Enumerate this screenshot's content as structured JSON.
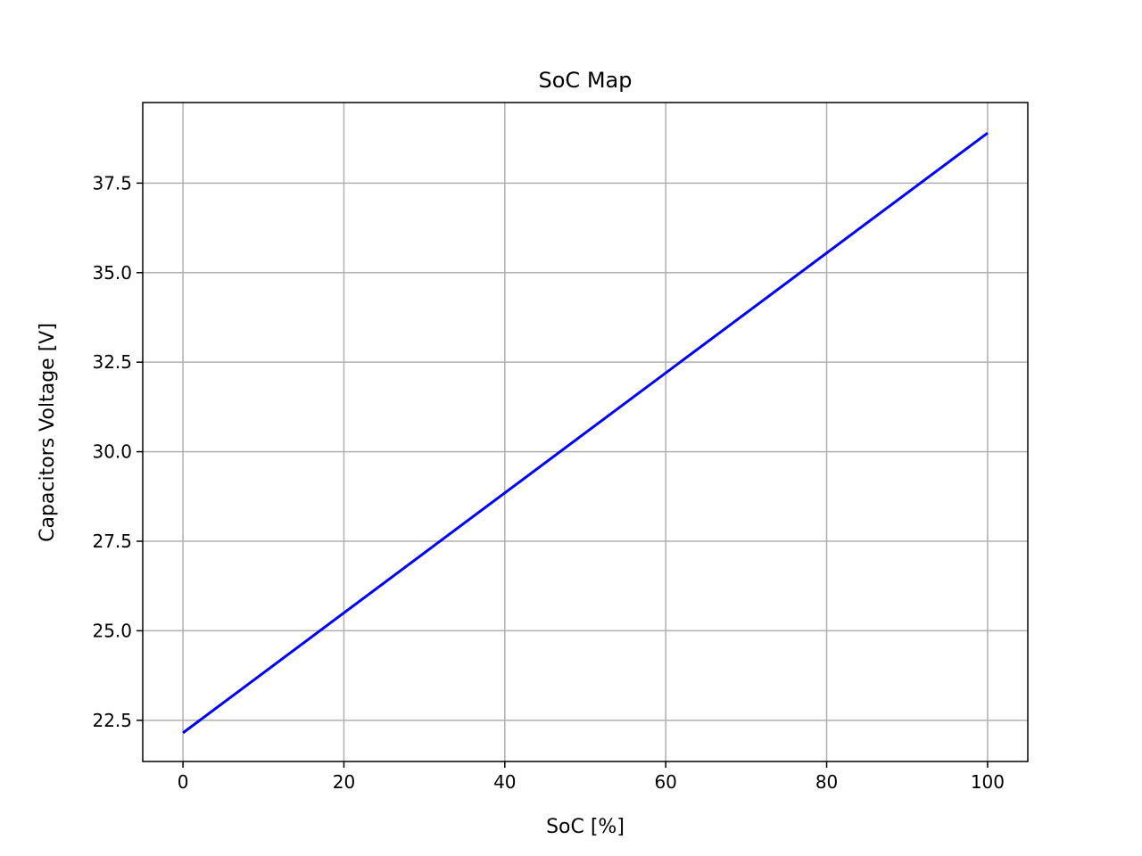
{
  "chart_data": {
    "type": "line",
    "title": "SoC Map",
    "xlabel": "SoC [%]",
    "ylabel": "Capacitors Voltage [V]",
    "xlim": [
      -5,
      105
    ],
    "ylim": [
      21.35,
      39.75
    ],
    "xticks": [
      0,
      20,
      40,
      60,
      80,
      100
    ],
    "xtick_labels": [
      "0",
      "20",
      "40",
      "60",
      "80",
      "100"
    ],
    "yticks": [
      22.5,
      25.0,
      27.5,
      30.0,
      32.5,
      35.0,
      37.5
    ],
    "ytick_labels": [
      "22.5",
      "25.0",
      "27.5",
      "30.0",
      "32.5",
      "35.0",
      "37.5"
    ],
    "grid": true,
    "series": [
      {
        "color": "#0000ff",
        "x": [
          0,
          100
        ],
        "y": [
          22.15,
          38.9
        ]
      }
    ]
  }
}
